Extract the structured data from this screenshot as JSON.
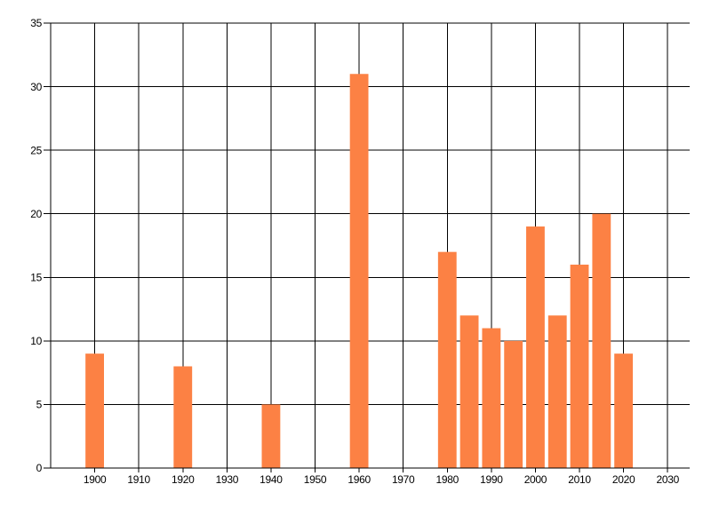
{
  "chart_data": {
    "type": "bar",
    "title": "",
    "xlabel": "",
    "ylabel": "",
    "x": [
      1900,
      1920,
      1940,
      1960,
      1980,
      1985,
      1990,
      1995,
      2000,
      2005,
      2010,
      2015,
      2020
    ],
    "values": [
      9,
      8,
      5,
      31,
      17,
      12,
      11,
      10,
      19,
      12,
      16,
      20,
      9
    ],
    "x_tick_labels": [
      "1900",
      "1910",
      "1920",
      "1930",
      "1940",
      "1950",
      "1960",
      "1970",
      "1980",
      "1990",
      "2000",
      "2010",
      "2020",
      "2030"
    ],
    "x_ticks": [
      1900,
      1910,
      1920,
      1930,
      1940,
      1950,
      1960,
      1970,
      1980,
      1990,
      2000,
      2010,
      2020,
      2030
    ],
    "y_tick_labels": [
      "0",
      "5",
      "10",
      "15",
      "20",
      "25",
      "30",
      "35"
    ],
    "y_ticks": [
      0,
      5,
      10,
      15,
      20,
      25,
      30,
      35
    ],
    "x_range": [
      1890,
      2035
    ],
    "y_range": [
      0,
      35
    ],
    "bar_width_years": 4.2,
    "bar_color": "#FC8144",
    "grid_color": "#000000",
    "axis_color": "#000000",
    "text_color": "#000000",
    "background_color": "#FFFFFF",
    "grid": "on",
    "legend": "none"
  }
}
